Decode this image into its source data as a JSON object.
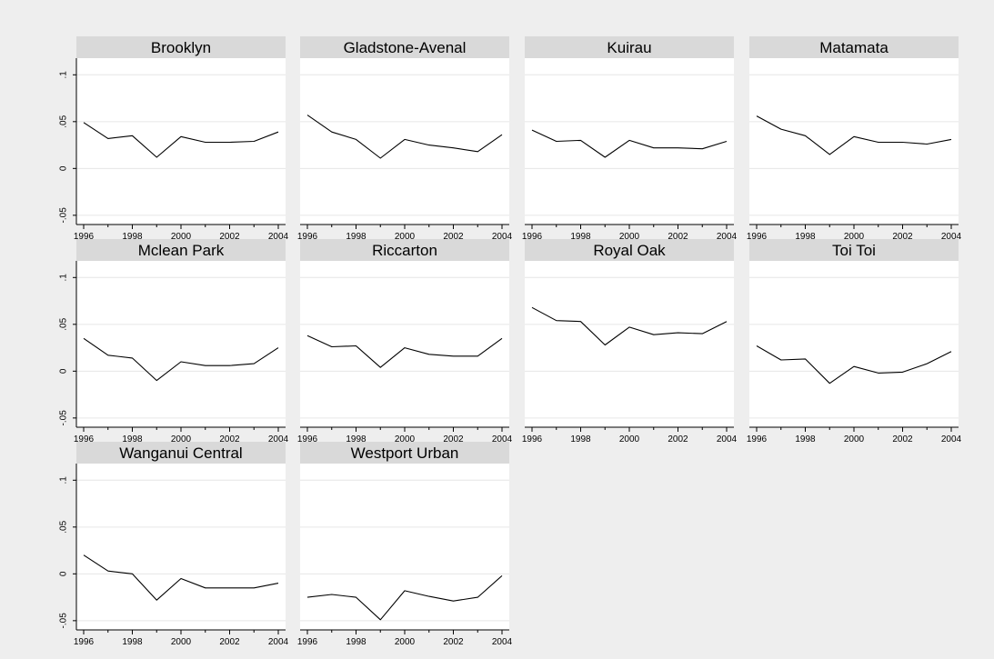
{
  "chart_data": {
    "type": "line",
    "layout": "small-multiples",
    "x": [
      1996,
      1997,
      1998,
      1999,
      2000,
      2001,
      2002,
      2003,
      2004
    ],
    "x_ticks": [
      "1996",
      "1998",
      "2000",
      "2002",
      "2004"
    ],
    "xlim": [
      1996,
      2004
    ],
    "y_ticks": [
      ".1",
      ".05",
      "0",
      "-.05"
    ],
    "ylim": [
      -0.055,
      0.11
    ],
    "grid": true,
    "legend": "none",
    "colors": {
      "figure_background": "#eeeeee",
      "panel_background": "#ffffff",
      "title_band": "#d9d9d9",
      "gridline": "#e6e6e6",
      "line": "#000000"
    },
    "panels": [
      {
        "title": "Brooklyn",
        "values": [
          0.049,
          0.032,
          0.035,
          0.012,
          0.034,
          0.028,
          0.028,
          0.029,
          0.039
        ]
      },
      {
        "title": "Gladstone-Avenal",
        "values": [
          0.057,
          0.039,
          0.031,
          0.011,
          0.031,
          0.025,
          0.022,
          0.018,
          0.036
        ]
      },
      {
        "title": "Kuirau",
        "values": [
          0.041,
          0.029,
          0.03,
          0.012,
          0.03,
          0.022,
          0.022,
          0.021,
          0.029
        ]
      },
      {
        "title": "Matamata",
        "values": [
          0.056,
          0.042,
          0.035,
          0.015,
          0.034,
          0.028,
          0.028,
          0.026,
          0.031
        ]
      },
      {
        "title": "Mclean Park",
        "values": [
          0.035,
          0.017,
          0.014,
          -0.01,
          0.01,
          0.006,
          0.006,
          0.008,
          0.025
        ]
      },
      {
        "title": "Riccarton",
        "values": [
          0.038,
          0.026,
          0.027,
          0.004,
          0.025,
          0.018,
          0.016,
          0.016,
          0.035
        ]
      },
      {
        "title": "Royal Oak",
        "values": [
          0.068,
          0.054,
          0.053,
          0.028,
          0.047,
          0.039,
          0.041,
          0.04,
          0.053
        ]
      },
      {
        "title": "Toi Toi",
        "values": [
          0.027,
          0.012,
          0.013,
          -0.013,
          0.005,
          -0.002,
          -0.001,
          0.008,
          0.021
        ]
      },
      {
        "title": "Wanganui Central",
        "values": [
          0.02,
          0.003,
          0.0,
          -0.028,
          -0.005,
          -0.015,
          -0.015,
          -0.015,
          -0.01
        ]
      },
      {
        "title": "Westport Urban",
        "values": [
          -0.025,
          -0.022,
          -0.025,
          -0.049,
          -0.018,
          -0.024,
          -0.029,
          -0.025,
          -0.002
        ]
      }
    ]
  }
}
